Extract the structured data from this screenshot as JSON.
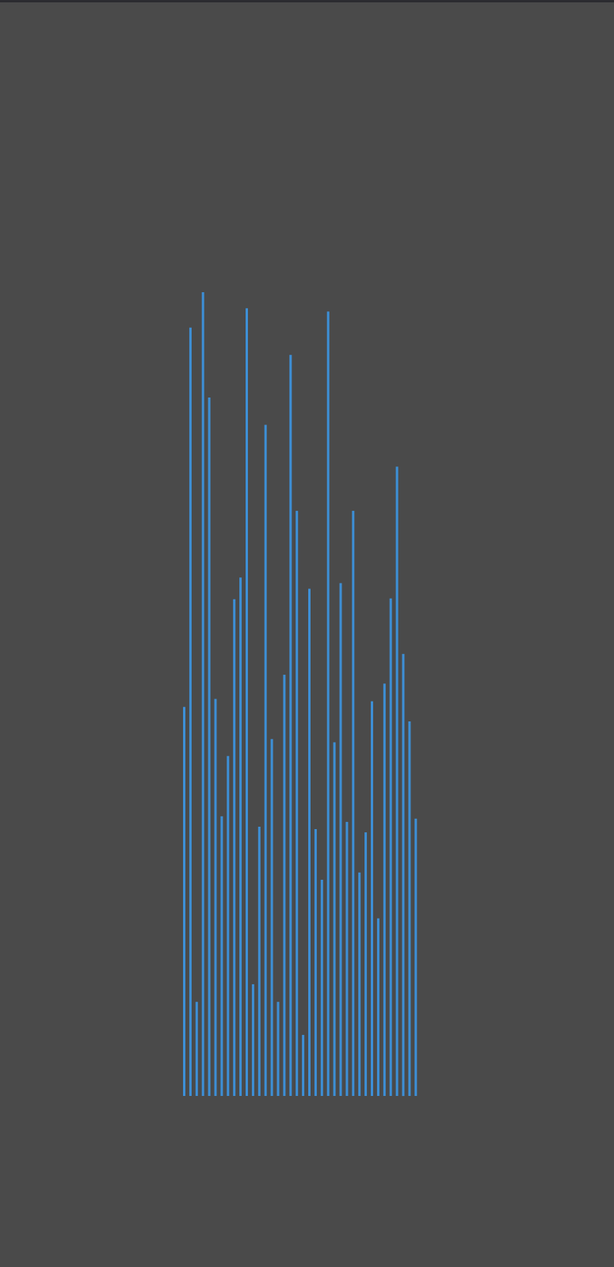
{
  "colors": {
    "background": "#4a4a4a",
    "bar": "#3d8fd6",
    "top_edge": "#2b2b30"
  },
  "chart_data": {
    "type": "bar",
    "xlabel": "",
    "ylabel": "",
    "grid": false,
    "ylim": [
      0,
      100
    ],
    "values": [
      48.4,
      95.6,
      11.7,
      100.0,
      86.9,
      49.4,
      34.8,
      42.3,
      61.8,
      64.5,
      98.0,
      13.9,
      33.5,
      83.5,
      44.4,
      11.7,
      52.4,
      92.2,
      72.8,
      7.6,
      63.1,
      33.2,
      26.9,
      97.6,
      44.0,
      63.8,
      34.1,
      72.8,
      27.8,
      32.8,
      49.1,
      22.1,
      51.3,
      61.9,
      78.3,
      55.0,
      46.6,
      34.5
    ]
  }
}
